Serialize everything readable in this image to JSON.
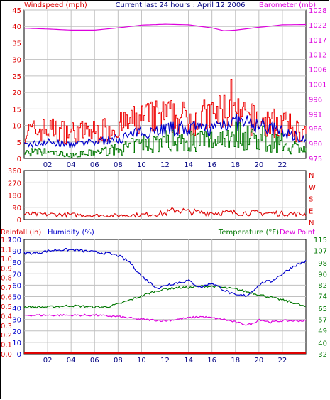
{
  "header": {
    "left": "Windspeed (mph)",
    "center": "Current last 24 hours : April 12 2006",
    "right": "Barometer (mb)"
  },
  "colors": {
    "wind_gust": "#ee0000",
    "wind_avg": "#0000cc",
    "wind_low": "#007700",
    "barometer": "#dd00dd",
    "direction": "#dd0000",
    "rain": "#dd0000",
    "humidity": "#0000cc",
    "temperature": "#007700",
    "dewpoint": "#dd00dd",
    "grid": "#c0c0c0",
    "axis_dark": "#000000"
  },
  "x_ticks": [
    "02",
    "04",
    "06",
    "08",
    "10",
    "12",
    "14",
    "16",
    "18",
    "20",
    "22"
  ],
  "panels": {
    "wind": {
      "left_ticks": [
        "0",
        "5",
        "10",
        "15",
        "20",
        "25",
        "30",
        "35",
        "40",
        "45"
      ],
      "right_ticks": [
        "975",
        "980",
        "986",
        "991",
        "996",
        "1001",
        "1006",
        "1012",
        "1017",
        "1022",
        "1028"
      ]
    },
    "direction": {
      "left_ticks": [
        "0",
        "90",
        "180",
        "270",
        "360"
      ],
      "compass_labels": [
        "N",
        "W",
        "S",
        "E",
        "N"
      ]
    },
    "climate": {
      "header_left": "Rainfall (in)",
      "header_mid": "Humidity (%)",
      "header_right": "Temperature (°F)",
      "header_dew": "Dew Point",
      "rain_ticks": [
        "0.0",
        "0.1",
        "0.2",
        "0.3",
        "0.4",
        "0.5",
        "0.6",
        "0.7",
        "0.8",
        "0.9",
        "1.0",
        "1.1",
        "1.2"
      ],
      "humidity_ticks": [
        "0",
        "10",
        "20",
        "30",
        "40",
        "50",
        "60",
        "70",
        "80",
        "90",
        "100"
      ],
      "temp_ticks": [
        "32",
        "40",
        "49",
        "57",
        "65",
        "74",
        "82",
        "90",
        "98",
        "107",
        "115"
      ]
    }
  },
  "chart_data": [
    {
      "type": "line",
      "title": "Current last 24 hours : April 12 2006",
      "ylabel": "Windspeed (mph)",
      "y2label": "Barometer (mb)",
      "xlim": [
        0,
        24
      ],
      "ylim": [
        0,
        45
      ],
      "y2lim": [
        975,
        1028
      ],
      "grid": true,
      "series": [
        {
          "name": "Barometer",
          "axis": "right",
          "x": [
            0,
            2,
            4,
            6,
            8,
            10,
            12,
            14,
            16,
            17,
            18,
            20,
            22,
            24
          ],
          "values": [
            1021.5,
            1021.2,
            1020.8,
            1020.8,
            1021.6,
            1022.6,
            1022.9,
            1022.7,
            1021.6,
            1020.6,
            1020.8,
            1021.8,
            1022.7,
            1022.8
          ]
        },
        {
          "axis": "left",
          "x": [
            0,
            2,
            4,
            6,
            8,
            10,
            12,
            14,
            16,
            17,
            18,
            20,
            22,
            24
          ],
          "values": [
            10,
            11,
            10,
            10,
            12,
            15,
            16,
            15,
            16,
            18,
            16,
            14,
            13,
            9
          ],
          "max": 24
        },
        {
          "axis": "left",
          "x": [
            0,
            2,
            4,
            6,
            8,
            10,
            12,
            14,
            16,
            17,
            18,
            20,
            22,
            24
          ],
          "values": [
            4,
            5,
            4,
            5,
            6,
            8,
            9,
            9,
            9,
            11,
            11,
            10,
            8,
            6
          ]
        },
        {
          "axis": "left",
          "x": [
            0,
            2,
            4,
            6,
            8,
            10,
            12,
            14,
            16,
            17,
            18,
            20,
            22,
            24
          ],
          "values": [
            2,
            2,
            1,
            2,
            3,
            5,
            6,
            6,
            6,
            8,
            8,
            7,
            5,
            3
          ]
        }
      ]
    },
    {
      "type": "line",
      "xlim": [
        0,
        24
      ],
      "ylim": [
        0,
        360
      ],
      "grid": true,
      "series": [
        {
          "x": [
            0,
            2,
            4,
            6,
            8,
            10,
            12,
            13,
            14,
            16,
            18,
            20,
            22,
            24
          ],
          "values": [
            40,
            38,
            35,
            30,
            30,
            35,
            45,
            75,
            55,
            50,
            50,
            48,
            45,
            40
          ]
        }
      ]
    },
    {
      "type": "line",
      "ylabel": "Humidity (%)",
      "y2label": "Temperature (°F)",
      "xlim": [
        0,
        24
      ],
      "grid": true,
      "series": [
        {
          "name": "Rainfall (in)",
          "axis": "rain",
          "ylim": [
            0,
            1.2
          ],
          "x": [
            0,
            24
          ],
          "values": [
            0,
            0
          ]
        },
        {
          "name": "Humidity (%)",
          "axis": "humidity",
          "ylim": [
            0,
            100
          ],
          "x": [
            0,
            1,
            2,
            3,
            4,
            5,
            6,
            7,
            8,
            9,
            10,
            11,
            11.5,
            12,
            13,
            14,
            15,
            16,
            17,
            18,
            19,
            20,
            20.5,
            21,
            22,
            23,
            24
          ],
          "values": [
            88,
            88,
            90,
            91,
            91,
            90,
            89,
            88,
            86,
            80,
            68,
            60,
            57,
            60,
            62,
            64,
            58,
            62,
            56,
            51,
            51,
            60,
            63,
            63,
            70,
            77,
            81
          ]
        },
        {
          "name": "Temperature (°F)",
          "axis": "temp",
          "ylim": [
            32,
            115
          ],
          "x": [
            0,
            2,
            4,
            6,
            7,
            8,
            9,
            10,
            11,
            12,
            13,
            14,
            15,
            16,
            17,
            18,
            19,
            20,
            21,
            22,
            23,
            24
          ],
          "values": [
            66,
            66,
            67,
            66,
            66,
            68,
            71,
            74,
            77,
            79,
            80,
            80,
            81,
            81,
            80,
            79,
            77,
            75,
            73,
            71,
            69,
            66
          ]
        },
        {
          "name": "Dew Point",
          "axis": "temp",
          "ylim": [
            32,
            115
          ],
          "x": [
            0,
            2,
            4,
            6,
            8,
            10,
            12,
            14,
            15,
            16,
            17,
            18,
            19,
            19.5,
            20,
            20.5,
            21,
            22,
            23,
            24
          ],
          "values": [
            60,
            60,
            60,
            60,
            59,
            57,
            56,
            58,
            59,
            58,
            57,
            55,
            53,
            54,
            57,
            56,
            55,
            56,
            56,
            56
          ]
        }
      ]
    }
  ]
}
